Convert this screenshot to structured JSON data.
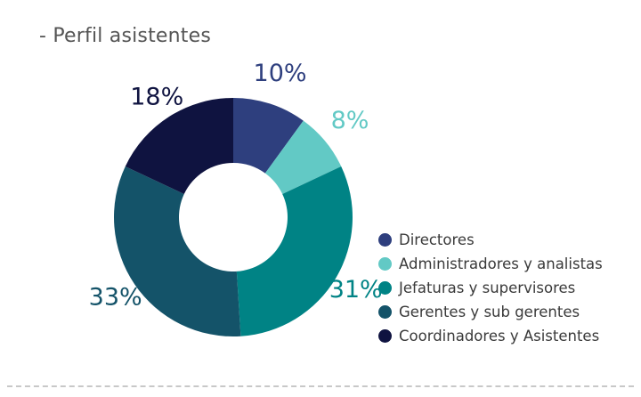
{
  "title": "- Perfil asistentes",
  "chart_data": {
    "type": "pie",
    "donut": true,
    "title": "- Perfil asistentes",
    "legend_position": "right-bottom",
    "slices": [
      {
        "label": "Directores",
        "value": 10,
        "display": "10%",
        "color": "#2e3f7e"
      },
      {
        "label": "Administradores y analistas",
        "value": 8,
        "display": "8%",
        "color": "#62c9c5"
      },
      {
        "label": "Jefaturas y supervisores",
        "value": 31,
        "display": "31%",
        "color": "#008385"
      },
      {
        "label": "Gerentes y sub gerentes",
        "value": 33,
        "display": "33%",
        "color": "#145369"
      },
      {
        "label": "Coordinadores y Asistentes",
        "value": 18,
        "display": "18%",
        "color": "#0f1340"
      }
    ]
  }
}
